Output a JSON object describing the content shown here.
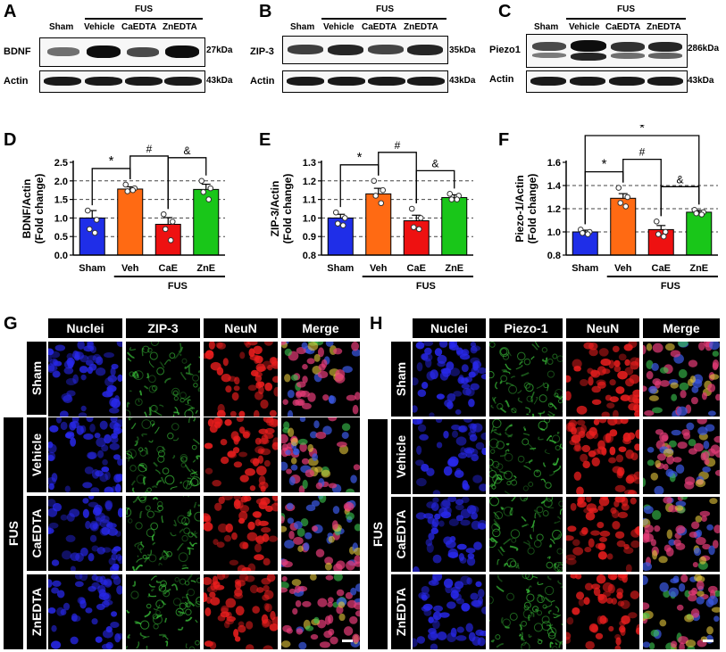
{
  "panels": {
    "A": "A",
    "B": "B",
    "C": "C",
    "D": "D",
    "E": "E",
    "F": "F",
    "G": "G",
    "H": "H"
  },
  "blots": [
    {
      "id": "A",
      "lanes": [
        "Sham",
        "Vehicle",
        "CaEDTA",
        "ZnEDTA"
      ],
      "group": "FUS",
      "rows": [
        {
          "label": "BDNF",
          "kda": "27kDa",
          "intensity": [
            0.55,
            0.95,
            0.7,
            0.95
          ]
        },
        {
          "label": "Actin",
          "kda": "43kDa",
          "intensity": [
            0.9,
            0.9,
            0.9,
            0.9
          ]
        }
      ]
    },
    {
      "id": "B",
      "lanes": [
        "Sham",
        "Vehicle",
        "CaEDTA",
        "ZnEDTA"
      ],
      "group": "FUS",
      "rows": [
        {
          "label": "ZIP-3",
          "kda": "35kDa",
          "intensity": [
            0.75,
            0.85,
            0.72,
            0.85
          ]
        },
        {
          "label": "Actin",
          "kda": "43kDa",
          "intensity": [
            0.9,
            0.9,
            0.9,
            0.9
          ]
        }
      ]
    },
    {
      "id": "C",
      "lanes": [
        "Sham",
        "Vehicle",
        "CaEDTA",
        "ZnEDTA"
      ],
      "group": "FUS",
      "rows": [
        {
          "label": "Piezo1",
          "kda": "286kDa",
          "intensity": [
            0.75,
            0.95,
            0.8,
            0.85
          ]
        },
        {
          "label": "Actin",
          "kda": "43kDa",
          "intensity": [
            0.9,
            0.9,
            0.9,
            0.9
          ]
        }
      ]
    }
  ],
  "colors": {
    "sham": "#1f2ee8",
    "veh": "#ff6a13",
    "cae": "#ee1111",
    "zne": "#19c619"
  },
  "chart_data": [
    {
      "id": "D",
      "type": "bar",
      "categories": [
        "Sham",
        "Veh",
        "CaE",
        "ZnE"
      ],
      "group_label": "FUS",
      "ylabel": "BDNF/Actin",
      "ylabel2": "(Fold change)",
      "ylim": [
        0.0,
        2.5
      ],
      "yticks": [
        "0.0",
        "0.5",
        "1.0",
        "1.5",
        "2.0",
        "2.5"
      ],
      "ytick_values": [
        0.0,
        0.5,
        1.0,
        1.5,
        2.0,
        2.5
      ],
      "gridlines": [
        0.5,
        1.0,
        1.5,
        2.0
      ],
      "values": [
        1.0,
        1.78,
        0.83,
        1.77
      ],
      "errors": [
        0.2,
        0.06,
        0.18,
        0.14
      ],
      "points": [
        [
          1.2,
          0.95,
          0.7,
          0.6
        ],
        [
          1.9,
          1.8,
          1.72,
          1.75
        ],
        [
          1.1,
          0.9,
          0.7,
          0.4
        ],
        [
          2.0,
          1.8,
          1.7,
          1.5
        ]
      ],
      "sig": [
        {
          "from": 0,
          "to": 1,
          "symbol": "*"
        },
        {
          "from": 1,
          "to": 2,
          "symbol": "#"
        },
        {
          "from": 2,
          "to": 3,
          "symbol": "&"
        }
      ]
    },
    {
      "id": "E",
      "type": "bar",
      "categories": [
        "Sham",
        "Veh",
        "CaE",
        "ZnE"
      ],
      "group_label": "FUS",
      "ylabel": "ZIP-3/Actin",
      "ylabel2": "(Fold change)",
      "ylim": [
        0.8,
        1.3
      ],
      "yticks": [
        "0.8",
        "0.9",
        "1.0",
        "1.1",
        "1.2",
        "1.3"
      ],
      "ytick_values": [
        0.8,
        0.9,
        1.0,
        1.1,
        1.2,
        1.3
      ],
      "gridlines": [
        0.9,
        1.0,
        1.1,
        1.2
      ],
      "values": [
        1.0,
        1.13,
        0.985,
        1.11
      ],
      "errors": [
        0.02,
        0.03,
        0.03,
        0.015
      ],
      "points": [
        [
          1.03,
          1.0,
          0.97,
          0.96
        ],
        [
          1.2,
          1.15,
          1.12,
          1.08
        ],
        [
          1.05,
          1.0,
          0.95,
          0.94
        ],
        [
          1.13,
          1.12,
          1.1,
          1.1
        ]
      ],
      "sig": [
        {
          "from": 0,
          "to": 1,
          "symbol": "*"
        },
        {
          "from": 1,
          "to": 2,
          "symbol": "#"
        },
        {
          "from": 2,
          "to": 3,
          "symbol": "&"
        }
      ]
    },
    {
      "id": "F",
      "type": "bar",
      "categories": [
        "Sham",
        "Veh",
        "CaE",
        "ZnE"
      ],
      "group_label": "FUS",
      "ylabel": "Piezo-1/Actin",
      "ylabel2": "(Fold change)",
      "ylim": [
        0.8,
        1.6
      ],
      "yticks": [
        "0.8",
        "1.0",
        "1.2",
        "1.4",
        "1.6"
      ],
      "ytick_values": [
        0.8,
        1.0,
        1.2,
        1.4,
        1.6
      ],
      "gridlines": [
        1.0,
        1.2,
        1.4
      ],
      "values": [
        1.0,
        1.29,
        1.02,
        1.17
      ],
      "errors": [
        0.015,
        0.04,
        0.035,
        0.015
      ],
      "points": [
        [
          1.02,
          1.0,
          0.99,
          0.98
        ],
        [
          1.38,
          1.3,
          1.25,
          1.22
        ],
        [
          1.09,
          1.0,
          0.98,
          0.96
        ],
        [
          1.19,
          1.17,
          1.16,
          1.15
        ]
      ],
      "sig": [
        {
          "from": 0,
          "to": 1,
          "symbol": "*"
        },
        {
          "from": 1,
          "to": 2,
          "symbol": "#"
        },
        {
          "from": 2,
          "to": 3,
          "symbol": "&"
        },
        {
          "from": 0,
          "to": 3,
          "symbol": "*"
        }
      ]
    }
  ],
  "micro_G": {
    "columns": [
      "Nuclei",
      "ZIP-3",
      "NeuN",
      "Merge"
    ],
    "rows": [
      "Sham",
      "Vehicle",
      "CaEDTA",
      "ZnEDTA"
    ],
    "group": "FUS"
  },
  "micro_H": {
    "columns": [
      "Nuclei",
      "Piezo-1",
      "NeuN",
      "Merge"
    ],
    "rows": [
      "Sham",
      "Vehicle",
      "CaEDTA",
      "ZnEDTA"
    ],
    "group": "FUS"
  }
}
